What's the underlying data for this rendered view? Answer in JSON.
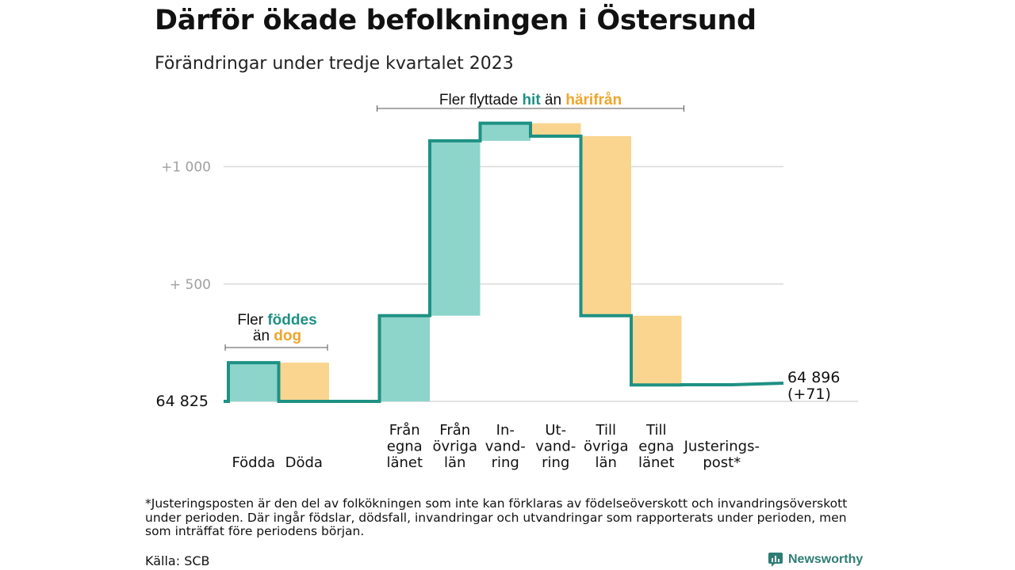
{
  "title": "Därför ökade befolkningen i Östersund",
  "subtitle": "Förändringar under tredje kvartalet 2023",
  "footnote": "*Justeringsposten är den del av folkökningen som inte kan förklaras av födelseöverskott och invandringsöverskott under perioden. Där ingår födslar, dödsfall, invandringar och utvandringar som rapporterats under perioden, men som inträffat före periodens början.",
  "source": "Källa: SCB",
  "brand": {
    "name": "Newsworthy",
    "icon": "newsworthy-logo-icon"
  },
  "colors": {
    "in": "#8dd4cb",
    "out": "#fad58f",
    "line": "#1e9183",
    "accent_in": "#1e9183",
    "accent_out": "#f0a52a",
    "grid": "#d9d9d9",
    "tick": "#a0a0a0"
  },
  "annotations": {
    "births": {
      "line1_prefix": "Fler ",
      "line1_accent": "föddes",
      "line2_prefix": "än ",
      "line2_accent": "dog"
    },
    "migration": {
      "prefix": "Fler flyttade ",
      "accent_in": "hit",
      "middle": " än ",
      "accent_out": "härifrån"
    }
  },
  "chart_data": {
    "type": "waterfall",
    "baseline": 64825,
    "baseline_label": "64  825",
    "y_ticks": [
      {
        "value": 1000,
        "label": "+1   000"
      },
      {
        "value": 500,
        "label": "+  500"
      }
    ],
    "grid": true,
    "ylim": [
      0,
      1210
    ],
    "groups": [
      {
        "gap_after": 1,
        "steps": [
          {
            "label": [
              "Födda"
            ],
            "delta": 165,
            "kind": "in"
          },
          {
            "label": [
              "Döda"
            ],
            "delta": -165,
            "kind": "out"
          }
        ]
      },
      {
        "gap_after": 0,
        "steps": [
          {
            "label": [
              "Från",
              "egna",
              "länet"
            ],
            "delta": 365,
            "kind": "in"
          },
          {
            "label": [
              "Från",
              "övriga",
              "län"
            ],
            "delta": 745,
            "kind": "in"
          },
          {
            "label": [
              "In-",
              "vand-",
              "ring"
            ],
            "delta": 75,
            "kind": "in"
          },
          {
            "label": [
              "Ut-",
              "vand-",
              "ring"
            ],
            "delta": -55,
            "kind": "out"
          },
          {
            "label": [
              "Till",
              "övriga",
              "län"
            ],
            "delta": -765,
            "kind": "out"
          },
          {
            "label": [
              "Till",
              "egna",
              "länet"
            ],
            "delta": -295,
            "kind": "out"
          }
        ]
      },
      {
        "gap_after": 0,
        "steps": [
          {
            "label": [
              "Justerings-",
              "post*"
            ],
            "delta": 1,
            "kind": "adjust"
          }
        ]
      }
    ],
    "end_label": [
      "64 896",
      "(+71)"
    ],
    "final_value": 64896,
    "total_change": 71
  }
}
